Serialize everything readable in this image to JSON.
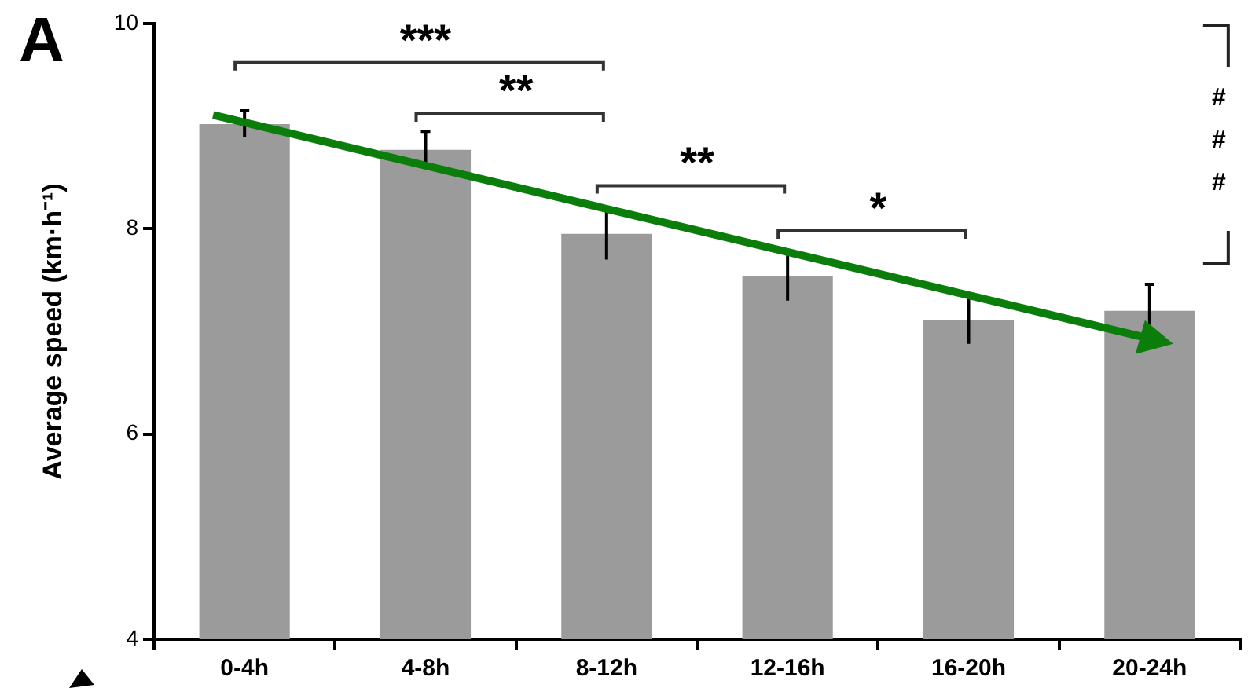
{
  "chart_data": {
    "type": "bar",
    "ylabel": "Average speed (km·h⁻¹)",
    "categories": [
      "0-4h",
      "4-8h",
      "8-12h",
      "12-16h",
      "16-20h",
      "20-24h"
    ],
    "values": [
      9.02,
      8.77,
      7.95,
      7.54,
      7.11,
      7.2
    ],
    "errors": [
      0.13,
      0.18,
      0.25,
      0.24,
      0.23,
      0.26
    ],
    "color": "#9b9b9b",
    "ylim": [
      4,
      10
    ],
    "yticks": [
      4,
      6,
      8,
      10
    ],
    "annotations": [
      "A",
      "***",
      "**",
      "**",
      "*",
      "###"
    ]
  }
}
